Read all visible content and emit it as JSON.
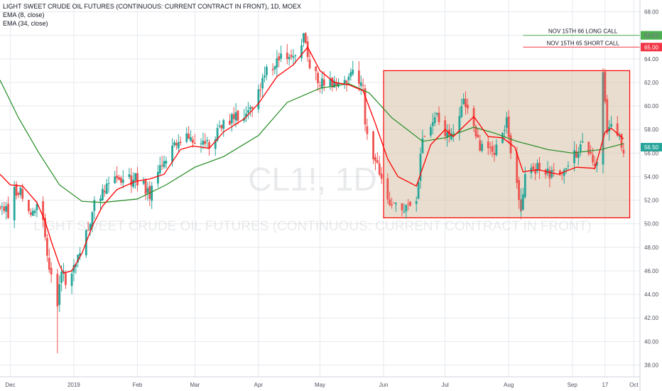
{
  "legend": {
    "title": "LIGHT SWEET CRUDE OIL FUTURES (CONTINUOUS: CURRENT CONTRACT IN FRONT), 1D, MOEX",
    "ema_fast": "EMA (8, close)",
    "ema_slow": "EMA (34, close)"
  },
  "watermark": {
    "symbol": "CL1!, 1D",
    "description": "LIGHT SWEET CRUDE OIL FUTURES (CONTINUOUS: CURRENT CONTRACT IN FRONT)"
  },
  "colors": {
    "up": "#26a69a",
    "down": "#ef5350",
    "ema_fast": "#ff0000",
    "ema_slow": "#228b22",
    "box_stroke": "#ff0000",
    "box_fill": "#d9c6ad",
    "long_call": "#4caf50",
    "short_call": "#f23645",
    "price_badge": "#26a69a"
  },
  "chart_data": {
    "type": "candlestick",
    "y_axis": {
      "min": 37,
      "max": 69,
      "ticks": [
        "38.00",
        "40.00",
        "42.00",
        "44.00",
        "46.00",
        "48.00",
        "50.00",
        "52.00",
        "54.00",
        "56.00",
        "58.00",
        "60.00",
        "62.00",
        "64.00",
        "66.00",
        "68.00"
      ]
    },
    "x_axis": {
      "start": "2018-11-26",
      "end": "2019-10-04",
      "ticks": [
        {
          "date": "2018-12-01",
          "label": "Dec"
        },
        {
          "date": "2019-01-01",
          "label": "2019"
        },
        {
          "date": "2019-02-01",
          "label": "Feb"
        },
        {
          "date": "2019-03-01",
          "label": "Mar"
        },
        {
          "date": "2019-04-01",
          "label": "Apr"
        },
        {
          "date": "2019-05-01",
          "label": "May"
        },
        {
          "date": "2019-06-01",
          "label": "Jun"
        },
        {
          "date": "2019-07-01",
          "label": "Jul"
        },
        {
          "date": "2019-08-01",
          "label": "Aug"
        },
        {
          "date": "2019-09-01",
          "label": "Sep"
        },
        {
          "date": "2019-09-17",
          "label": "17"
        },
        {
          "date": "2019-10-01",
          "label": "Oct"
        }
      ]
    },
    "close_path": [
      [
        "2018-11-26",
        51.6
      ],
      [
        "2018-11-30",
        50.9
      ],
      [
        "2018-12-03",
        53.0
      ],
      [
        "2018-12-07",
        52.6
      ],
      [
        "2018-12-10",
        51.0
      ],
      [
        "2018-12-14",
        51.2
      ],
      [
        "2018-12-17",
        49.9
      ],
      [
        "2018-12-19",
        47.2
      ],
      [
        "2018-12-21",
        45.6
      ],
      [
        "2018-12-24",
        42.5
      ],
      [
        "2018-12-26",
        46.2
      ],
      [
        "2018-12-28",
        45.3
      ],
      [
        "2019-01-02",
        46.5
      ],
      [
        "2019-01-04",
        47.9
      ],
      [
        "2019-01-08",
        49.8
      ],
      [
        "2019-01-11",
        51.6
      ],
      [
        "2019-01-18",
        53.8
      ],
      [
        "2019-01-25",
        53.7
      ],
      [
        "2019-01-31",
        53.8
      ],
      [
        "2019-02-07",
        52.6
      ],
      [
        "2019-02-15",
        55.6
      ],
      [
        "2019-02-22",
        57.3
      ],
      [
        "2019-02-28",
        57.2
      ],
      [
        "2019-03-07",
        56.7
      ],
      [
        "2019-03-15",
        58.5
      ],
      [
        "2019-03-22",
        59.0
      ],
      [
        "2019-03-29",
        60.1
      ],
      [
        "2019-04-05",
        63.0
      ],
      [
        "2019-04-12",
        63.9
      ],
      [
        "2019-04-17",
        63.8
      ],
      [
        "2019-04-23",
        65.9
      ],
      [
        "2019-04-26",
        63.3
      ],
      [
        "2019-05-02",
        61.9
      ],
      [
        "2019-05-10",
        61.7
      ],
      [
        "2019-05-17",
        62.8
      ],
      [
        "2019-05-22",
        61.4
      ],
      [
        "2019-05-23",
        57.9
      ],
      [
        "2019-05-31",
        53.5
      ],
      [
        "2019-06-05",
        51.7
      ],
      [
        "2019-06-12",
        51.1
      ],
      [
        "2019-06-17",
        52.0
      ],
      [
        "2019-06-20",
        57.1
      ],
      [
        "2019-06-26",
        59.4
      ],
      [
        "2019-07-03",
        57.3
      ],
      [
        "2019-07-10",
        60.4
      ],
      [
        "2019-07-12",
        60.2
      ],
      [
        "2019-07-17",
        56.8
      ],
      [
        "2019-07-25",
        56.2
      ],
      [
        "2019-07-31",
        58.6
      ],
      [
        "2019-08-02",
        55.7
      ],
      [
        "2019-08-07",
        51.1
      ],
      [
        "2019-08-09",
        54.5
      ],
      [
        "2019-08-16",
        54.8
      ],
      [
        "2019-08-23",
        54.2
      ],
      [
        "2019-08-30",
        55.1
      ],
      [
        "2019-09-06",
        56.5
      ],
      [
        "2019-09-13",
        54.9
      ],
      [
        "2019-09-16",
        62.9
      ],
      [
        "2019-09-18",
        58.1
      ],
      [
        "2019-09-20",
        58.1
      ],
      [
        "2019-09-24",
        57.3
      ],
      [
        "2019-09-26",
        56.5
      ]
    ],
    "ema_8_path": [
      [
        "2018-11-26",
        54.2
      ],
      [
        "2018-12-01",
        53.3
      ],
      [
        "2018-12-07",
        53.2
      ],
      [
        "2018-12-14",
        51.8
      ],
      [
        "2018-12-18",
        50.2
      ],
      [
        "2018-12-21",
        48.5
      ],
      [
        "2018-12-25",
        46.5
      ],
      [
        "2018-12-27",
        45.8
      ],
      [
        "2018-12-31",
        46.0
      ],
      [
        "2019-01-05",
        47.5
      ],
      [
        "2019-01-10",
        49.8
      ],
      [
        "2019-01-15",
        51.5
      ],
      [
        "2019-01-22",
        52.9
      ],
      [
        "2019-01-31",
        53.6
      ],
      [
        "2019-02-07",
        53.8
      ],
      [
        "2019-02-14",
        54.2
      ],
      [
        "2019-02-22",
        56.3
      ],
      [
        "2019-02-28",
        56.6
      ],
      [
        "2019-03-08",
        56.4
      ],
      [
        "2019-03-15",
        57.8
      ],
      [
        "2019-03-25",
        58.9
      ],
      [
        "2019-04-01",
        60.2
      ],
      [
        "2019-04-10",
        62.5
      ],
      [
        "2019-04-18",
        63.5
      ],
      [
        "2019-04-25",
        65.0
      ],
      [
        "2019-05-01",
        63.0
      ],
      [
        "2019-05-08",
        62.0
      ],
      [
        "2019-05-15",
        61.8
      ],
      [
        "2019-05-22",
        61.3
      ],
      [
        "2019-05-28",
        58.5
      ],
      [
        "2019-06-03",
        55.5
      ],
      [
        "2019-06-08",
        54.0
      ],
      [
        "2019-06-17",
        53.2
      ],
      [
        "2019-06-24",
        56.7
      ],
      [
        "2019-07-01",
        58.0
      ],
      [
        "2019-07-05",
        57.4
      ],
      [
        "2019-07-15",
        59.1
      ],
      [
        "2019-07-22",
        57.4
      ],
      [
        "2019-07-29",
        57.3
      ],
      [
        "2019-08-04",
        56.5
      ],
      [
        "2019-08-08",
        54.4
      ],
      [
        "2019-08-15",
        54.6
      ],
      [
        "2019-08-25",
        54.2
      ],
      [
        "2019-09-03",
        54.8
      ],
      [
        "2019-09-12",
        54.7
      ],
      [
        "2019-09-17",
        57.8
      ],
      [
        "2019-09-20",
        58.1
      ],
      [
        "2019-09-26",
        57.2
      ]
    ],
    "ema_34_path": [
      [
        "2018-11-26",
        62.2
      ],
      [
        "2018-12-05",
        59.0
      ],
      [
        "2018-12-15",
        56.0
      ],
      [
        "2018-12-25",
        53.3
      ],
      [
        "2019-01-05",
        51.9
      ],
      [
        "2019-01-15",
        51.8
      ],
      [
        "2019-02-01",
        52.1
      ],
      [
        "2019-02-15",
        53.3
      ],
      [
        "2019-03-01",
        54.8
      ],
      [
        "2019-03-15",
        55.7
      ],
      [
        "2019-04-01",
        57.5
      ],
      [
        "2019-04-15",
        60.3
      ],
      [
        "2019-05-01",
        61.5
      ],
      [
        "2019-05-15",
        61.9
      ],
      [
        "2019-05-25",
        61.1
      ],
      [
        "2019-06-05",
        59.0
      ],
      [
        "2019-06-20",
        57.0
      ],
      [
        "2019-07-01",
        57.3
      ],
      [
        "2019-07-15",
        58.2
      ],
      [
        "2019-07-25",
        57.7
      ],
      [
        "2019-08-05",
        57.0
      ],
      [
        "2019-08-20",
        56.3
      ],
      [
        "2019-09-01",
        56.0
      ],
      [
        "2019-09-15",
        56.3
      ],
      [
        "2019-09-26",
        56.8
      ]
    ],
    "range_box": {
      "x0": "2019-06-01",
      "x1": "2019-09-29",
      "y0": 50.5,
      "y1": 63.0
    },
    "horizontal_lines": [
      {
        "label": "NOV 15TH 66 LONG CALL",
        "price": 66.0,
        "badge": "66.00",
        "from": "2019-08-08"
      },
      {
        "label": "NOV 15TH  65 SHORT CALL",
        "price": 65.0,
        "badge": "65.00",
        "from": "2019-08-08"
      }
    ],
    "last_price": {
      "value": 56.5,
      "badge": "56.50"
    }
  }
}
